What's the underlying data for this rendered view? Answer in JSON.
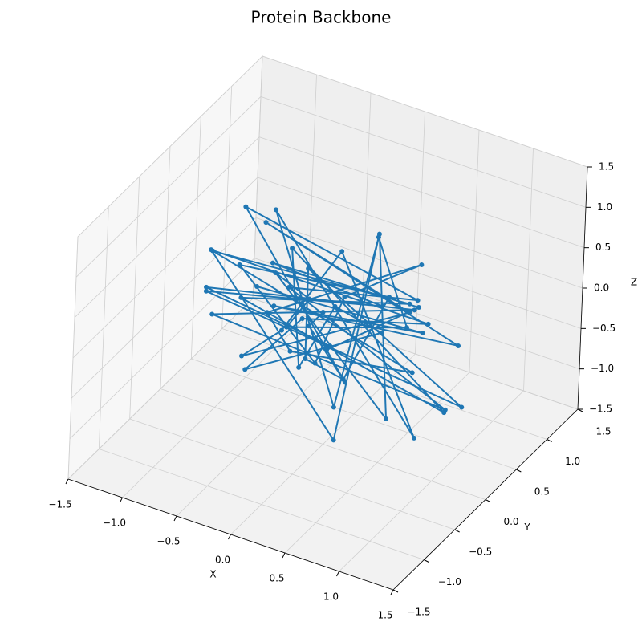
{
  "chart_data": {
    "type": "line3d",
    "title": "Protein Backbone",
    "xlabel": "X",
    "ylabel": "Y",
    "zlabel": "Z",
    "xlim": [
      -1.5,
      1.5
    ],
    "ylim": [
      -1.5,
      1.5
    ],
    "zlim": [
      -1.5,
      1.5
    ],
    "xticks": [
      {
        "value": -1.5,
        "label": "−1.5"
      },
      {
        "value": -1.0,
        "label": "−1.0"
      },
      {
        "value": -0.5,
        "label": "−0.5"
      },
      {
        "value": 0,
        "label": "0.0"
      },
      {
        "value": 0.5,
        "label": "0.5"
      },
      {
        "value": 1.0,
        "label": "1.0"
      },
      {
        "value": 1.5,
        "label": "1.5"
      }
    ],
    "yticks": [
      {
        "value": -1.5,
        "label": "−1.5"
      },
      {
        "value": -1.0,
        "label": "−1.0"
      },
      {
        "value": -0.5,
        "label": "−0.5"
      },
      {
        "value": 0,
        "label": "0.0"
      },
      {
        "value": 0.5,
        "label": "0.5"
      },
      {
        "value": 1.0,
        "label": "1.0"
      },
      {
        "value": 1.5,
        "label": "1.5"
      }
    ],
    "zticks": [
      {
        "value": -1.5,
        "label": "−1.5"
      },
      {
        "value": -1.0,
        "label": "−1.0"
      },
      {
        "value": -0.5,
        "label": "−0.5"
      },
      {
        "value": 0,
        "label": "0.0"
      },
      {
        "value": 0.5,
        "label": "0.5"
      },
      {
        "value": 1.0,
        "label": "1.0"
      },
      {
        "value": 1.5,
        "label": "1.5"
      }
    ],
    "grid": true,
    "color": "#1f77b4",
    "x": [
      0.12,
      -0.45,
      0.63,
      -0.88,
      0.31,
      -0.12,
      0.95,
      -0.67,
      0.22,
      -1.05,
      0.54,
      -0.33,
      0.78,
      -0.21,
      0.05,
      -0.92,
      1.12,
      -0.58,
      0.41,
      -0.07,
      0.69,
      -1.18,
      0.27,
      -0.39,
      0.86,
      -0.74,
      0.14,
      0.48,
      -0.96,
      0.33,
      -0.25,
      1.02,
      -0.61,
      0.09,
      -0.43,
      0.72,
      -0.84,
      0.18,
      0.57,
      -1.1,
      0.38,
      -0.16,
      0.91,
      -0.52,
      0.26,
      -0.79,
      0.64,
      -0.03,
      0.44,
      -0.68,
      1.08,
      -0.29,
      0.11,
      -0.86,
      0.53,
      -0.47,
      0.83,
      -0.19,
      0.36,
      -0.6
    ],
    "y": [
      -0.31,
      0.52,
      -0.84,
      0.17,
      0.93,
      -0.46,
      0.28,
      -0.72,
      1.05,
      -0.13,
      -0.95,
      0.61,
      0.08,
      -0.58,
      0.82,
      -0.37,
      0.24,
      0.71,
      -1.12,
      0.43,
      -0.26,
      0.66,
      -0.69,
      0.99,
      -0.05,
      0.34,
      -0.88,
      0.57,
      -0.21,
      0.76,
      -1.02,
      0.13,
      0.48,
      -0.63,
      0.91,
      -0.42,
      0.19,
      -0.77,
      0.64,
      0.02,
      -0.53,
      1.1,
      -0.35,
      0.27,
      -0.81,
      0.55,
      -0.14,
      0.87,
      -0.66,
      0.31,
      -0.47,
      0.73,
      -0.98,
      0.16,
      0.39,
      -0.24,
      0.68,
      -0.57,
      0.94,
      -0.11
    ],
    "z": [
      0.42,
      -0.63,
      0.18,
      0.91,
      -0.27,
      0.73,
      -0.85,
      0.34,
      -0.52,
      0.06,
      0.67,
      -0.94,
      0.49,
      1.08,
      -0.38,
      0.25,
      -0.71,
      -0.12,
      0.58,
      -1.05,
      0.83,
      -0.31,
      0.14,
      -0.59,
      1.15,
      -0.46,
      0.37,
      -0.82,
      0.61,
      -0.18,
      0.96,
      -0.74,
      0.29,
      -0.04,
      -0.67,
      0.52,
      -1.1,
      0.71,
      -0.23,
      0.39,
      -0.88,
      0.17,
      0.62,
      -0.49,
      1.02,
      -0.15,
      -0.79,
      0.44,
      -0.35,
      0.86,
      -0.58,
      0.21,
      0.69,
      -0.92,
      0.08,
      1.21,
      -0.41,
      0.55,
      -0.66,
      0.26
    ]
  }
}
